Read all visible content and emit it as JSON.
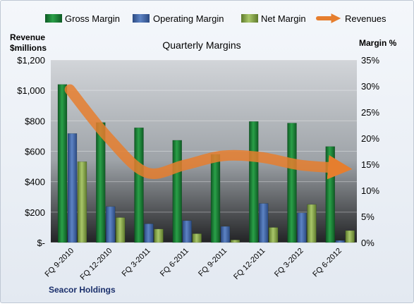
{
  "chart_data": {
    "type": "bar",
    "title": "Quarterly Margins",
    "company": "Seacor Holdings",
    "categories": [
      "FQ 9-2010",
      "FQ 12-2010",
      "FQ 3-2011",
      "FQ 6-2011",
      "FQ 9-2011",
      "FQ 12-2011",
      "FQ 3-2012",
      "FQ 6-2012"
    ],
    "left_axis": {
      "label_line1": "Revenue",
      "label_line2": "$millions",
      "ticks": [
        "$-",
        "$200",
        "$400",
        "$600",
        "$800",
        "$1,000",
        "$1,200"
      ],
      "ylim": [
        0,
        1200
      ]
    },
    "right_axis": {
      "label": "Margin %",
      "ticks": [
        "0%",
        "5%",
        "10%",
        "15%",
        "20%",
        "25%",
        "30%",
        "35%"
      ],
      "ylim": [
        0,
        35
      ]
    },
    "series": [
      {
        "name": "Gross Margin",
        "type": "bar",
        "axis": "right",
        "color": "#1f8b3c",
        "values": [
          30.3,
          23.0,
          22.0,
          19.6,
          16.9,
          23.2,
          22.9,
          18.4
        ]
      },
      {
        "name": "Operating Margin",
        "type": "bar",
        "axis": "right",
        "color": "#4a6fb0",
        "values": [
          20.9,
          6.9,
          3.6,
          4.2,
          3.1,
          7.5,
          5.7,
          0.4
        ]
      },
      {
        "name": "Net Margin",
        "type": "bar",
        "axis": "right",
        "color": "#8fb052",
        "values": [
          15.5,
          4.8,
          2.6,
          1.7,
          0.5,
          2.9,
          7.3,
          2.3
        ]
      },
      {
        "name": "Revenues",
        "type": "line",
        "axis": "left",
        "color": "#e67e2e",
        "values": [
          1005,
          690,
          460,
          510,
          570,
          560,
          510,
          490
        ]
      }
    ],
    "grid": true,
    "legend": "top"
  }
}
